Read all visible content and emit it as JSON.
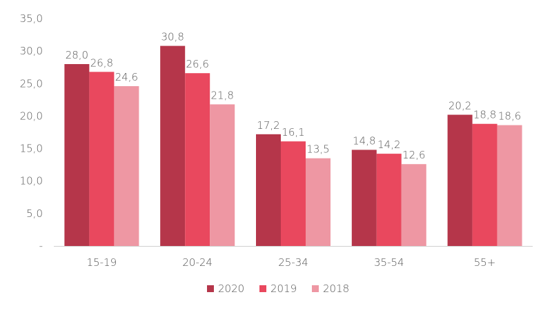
{
  "chart_data": {
    "type": "bar",
    "categories": [
      "15-19",
      "20-24",
      "25-34",
      "35-54",
      "55+"
    ],
    "series": [
      {
        "name": "2020",
        "values": [
          28.0,
          30.8,
          17.2,
          14.8,
          20.2
        ],
        "color": "#b5364a",
        "labels": [
          "28,0",
          "30,8",
          "17,2",
          "14,8",
          "20,2"
        ]
      },
      {
        "name": "2019",
        "values": [
          26.8,
          26.6,
          16.1,
          14.2,
          18.8
        ],
        "color": "#e9485e",
        "labels": [
          "26,8",
          "26,6",
          "16,1",
          "14,2",
          "18,8"
        ]
      },
      {
        "name": "2018",
        "values": [
          24.6,
          21.8,
          13.5,
          12.6,
          18.6
        ],
        "color": "#ee97a3",
        "labels": [
          "24,6",
          "21,8",
          "13,5",
          "12,6",
          "18,6"
        ]
      }
    ],
    "yticks": [
      {
        "value": 0,
        "label": "-"
      },
      {
        "value": 5,
        "label": "5,0"
      },
      {
        "value": 10,
        "label": "10,0"
      },
      {
        "value": 15,
        "label": "15,0"
      },
      {
        "value": 20,
        "label": "20,0"
      },
      {
        "value": 25,
        "label": "25,0"
      },
      {
        "value": 30,
        "label": "30,0"
      },
      {
        "value": 35,
        "label": "35,0"
      }
    ],
    "ylim": [
      0,
      35
    ],
    "grid": false,
    "legend_position": "bottom-center",
    "title": "",
    "xlabel": "",
    "ylabel": ""
  }
}
